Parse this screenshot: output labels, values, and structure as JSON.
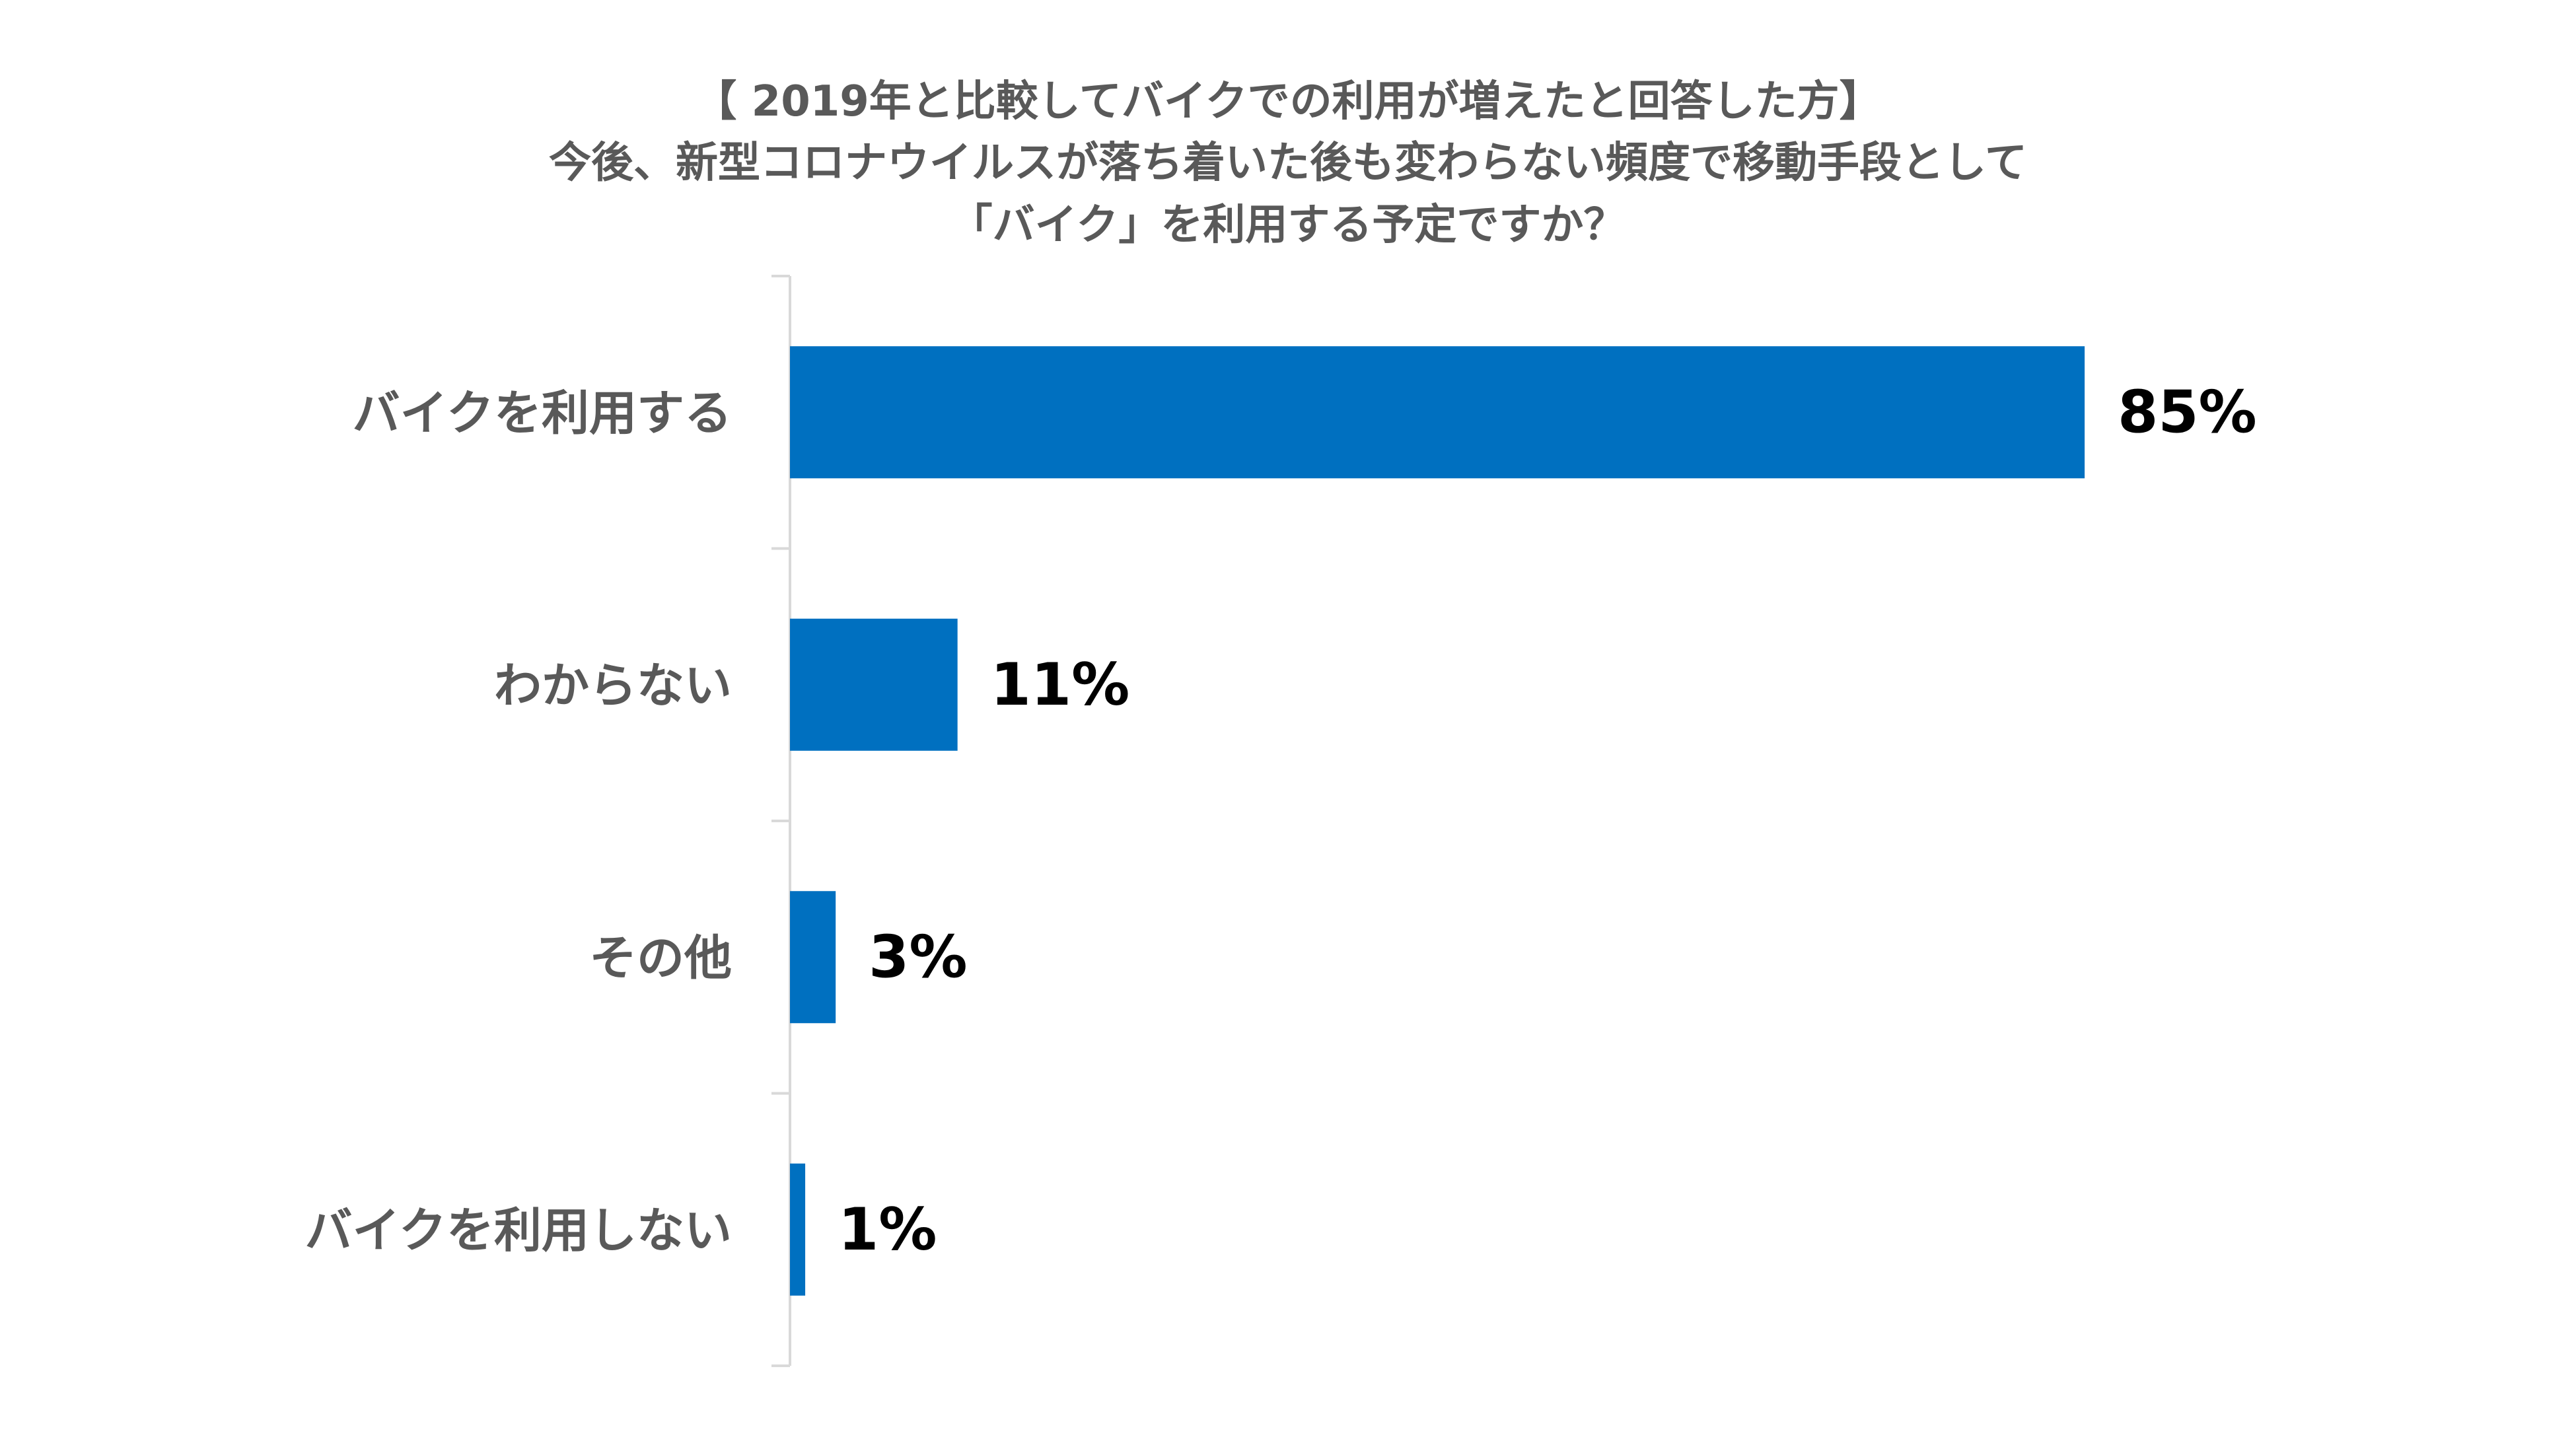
{
  "chart_data": {
    "type": "bar",
    "orientation": "horizontal",
    "title": [
      "【 2019年と比較してバイクでの利用が増えたと回答した方】",
      "今後、新型コロナウイルスが落ち着いた後も変わらない頻度で移動手段として",
      "「バイク」を利用する予定ですか？"
    ],
    "categories": [
      "バイクを利用する",
      "わからない",
      "その他",
      "バイクを利用しない"
    ],
    "values": [
      85,
      11,
      3,
      1
    ],
    "value_labels": [
      "85%",
      "11%",
      "3%",
      "1%"
    ],
    "xlim": [
      0,
      100
    ],
    "unit": "%",
    "grid": false,
    "legend": "none",
    "colors": {
      "bar": "#0070C0",
      "axis": "#D9D9D9",
      "category_text": "#595959",
      "value_text": "#000000",
      "title_text": "#595959"
    }
  }
}
